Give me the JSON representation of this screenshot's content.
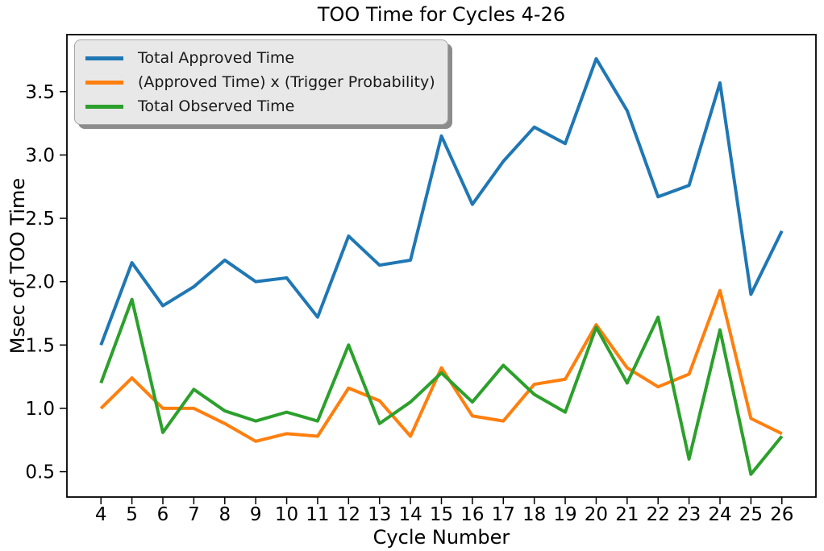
{
  "chart_data": {
    "type": "line",
    "title": "TOO Time for Cycles 4-26",
    "xlabel": "Cycle Number",
    "ylabel": "Msec of TOO Time",
    "categories": [
      4,
      5,
      6,
      7,
      8,
      9,
      10,
      11,
      12,
      13,
      14,
      15,
      16,
      17,
      18,
      19,
      20,
      21,
      22,
      23,
      24,
      25,
      26
    ],
    "x_tick_labels": [
      "4",
      "5",
      "6",
      "7",
      "8",
      "9",
      "10",
      "11",
      "12",
      "13",
      "14",
      "15",
      "16",
      "17",
      "18",
      "19",
      "20",
      "21",
      "22",
      "23",
      "24",
      "25",
      "26"
    ],
    "y_tick_values": [
      0.5,
      1.0,
      1.5,
      2.0,
      2.5,
      3.0,
      3.5
    ],
    "y_tick_labels": [
      "0.5",
      "1.0",
      "1.5",
      "2.0",
      "2.5",
      "3.0",
      "3.5"
    ],
    "xlim": [
      2.9,
      27.1
    ],
    "ylim": [
      0.3,
      3.95
    ],
    "grid": false,
    "axis_color": "#000000",
    "text_color": "#000000",
    "legend": {
      "position": "upper left",
      "background": "#e8e8e8",
      "border_color": "#a6a6a6",
      "shadow": true
    },
    "series": [
      {
        "name": "Total Approved Time",
        "color": "#1f77b4",
        "values": [
          1.5,
          2.15,
          1.81,
          1.96,
          2.17,
          2.0,
          2.03,
          1.72,
          2.36,
          2.13,
          2.17,
          3.15,
          2.61,
          2.95,
          3.22,
          3.09,
          3.76,
          3.35,
          2.67,
          2.76,
          3.57,
          1.9,
          2.4
        ]
      },
      {
        "name": "(Approved Time) x (Trigger Probability)",
        "color": "#ff7f0e",
        "values": [
          1.0,
          1.24,
          1.0,
          1.0,
          0.88,
          0.74,
          0.8,
          0.78,
          1.16,
          1.06,
          0.78,
          1.32,
          0.94,
          0.9,
          1.19,
          1.23,
          1.66,
          1.32,
          1.17,
          1.27,
          1.93,
          0.92,
          0.8
        ]
      },
      {
        "name": "Total Observed Time",
        "color": "#2ca02c",
        "values": [
          1.2,
          1.86,
          0.81,
          1.15,
          0.98,
          0.9,
          0.97,
          0.9,
          1.5,
          0.88,
          1.05,
          1.28,
          1.05,
          1.34,
          1.11,
          0.97,
          1.64,
          1.2,
          1.72,
          0.6,
          1.62,
          0.48,
          0.78
        ]
      }
    ]
  }
}
